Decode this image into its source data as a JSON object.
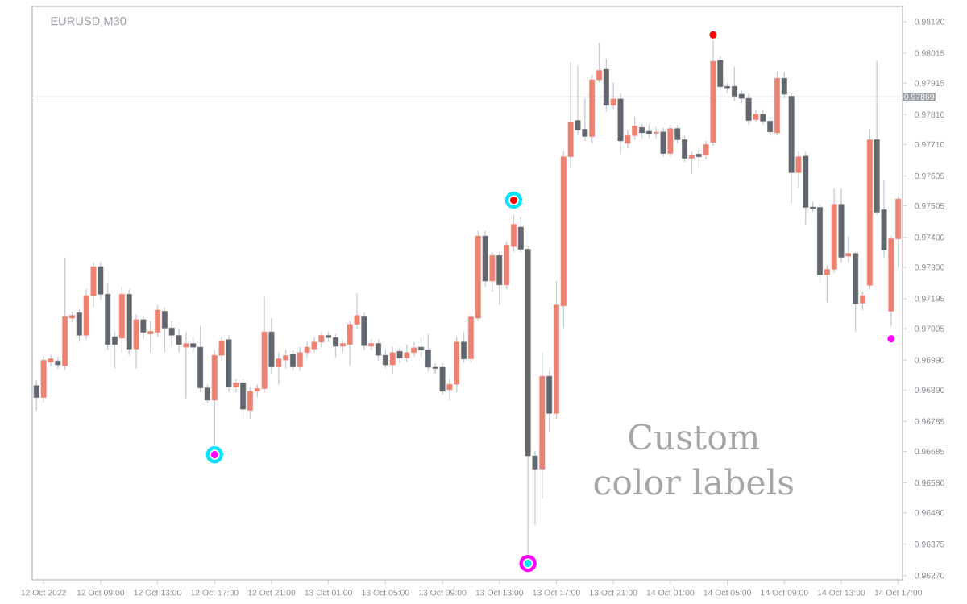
{
  "chart_data": {
    "type": "candlestick",
    "title": "EURUSD,M30",
    "annotations": [
      "Custom color labels"
    ],
    "x": [
      "2022-10-12T04:30",
      "2022-10-12T05:00",
      "2022-10-12T05:30",
      "2022-10-12T06:00",
      "2022-10-12T06:30",
      "2022-10-12T07:00",
      "2022-10-12T07:30",
      "2022-10-12T08:00",
      "2022-10-12T08:30",
      "2022-10-12T09:00",
      "2022-10-12T09:30",
      "2022-10-12T10:00",
      "2022-10-12T10:30",
      "2022-10-12T11:00",
      "2022-10-12T11:30",
      "2022-10-12T12:00",
      "2022-10-12T12:30",
      "2022-10-12T13:00",
      "2022-10-12T13:30",
      "2022-10-12T14:00",
      "2022-10-12T14:30",
      "2022-10-12T15:00",
      "2022-10-12T15:30",
      "2022-10-12T16:00",
      "2022-10-12T16:30",
      "2022-10-12T17:00",
      "2022-10-12T17:30",
      "2022-10-12T18:00",
      "2022-10-12T18:30",
      "2022-10-12T19:00",
      "2022-10-12T19:30",
      "2022-10-12T20:00",
      "2022-10-12T20:30",
      "2022-10-12T21:00",
      "2022-10-12T21:30",
      "2022-10-12T22:00",
      "2022-10-12T22:30",
      "2022-10-12T23:00",
      "2022-10-12T23:30",
      "2022-10-13T00:00",
      "2022-10-13T00:30",
      "2022-10-13T01:00",
      "2022-10-13T01:30",
      "2022-10-13T02:00",
      "2022-10-13T02:30",
      "2022-10-13T03:00",
      "2022-10-13T03:30",
      "2022-10-13T04:00",
      "2022-10-13T04:30",
      "2022-10-13T05:00",
      "2022-10-13T05:30",
      "2022-10-13T06:00",
      "2022-10-13T06:30",
      "2022-10-13T07:00",
      "2022-10-13T07:30",
      "2022-10-13T08:00",
      "2022-10-13T08:30",
      "2022-10-13T09:00",
      "2022-10-13T09:30",
      "2022-10-13T10:00",
      "2022-10-13T10:30",
      "2022-10-13T11:00",
      "2022-10-13T11:30",
      "2022-10-13T12:00",
      "2022-10-13T12:30",
      "2022-10-13T13:00",
      "2022-10-13T13:30",
      "2022-10-13T14:00",
      "2022-10-13T14:30",
      "2022-10-13T15:00",
      "2022-10-13T15:30",
      "2022-10-13T16:00",
      "2022-10-13T16:30",
      "2022-10-13T17:00",
      "2022-10-13T17:30",
      "2022-10-13T18:00",
      "2022-10-13T18:30",
      "2022-10-13T19:00",
      "2022-10-13T19:30",
      "2022-10-13T20:00",
      "2022-10-13T20:30",
      "2022-10-13T21:00",
      "2022-10-13T21:30",
      "2022-10-13T22:00",
      "2022-10-13T22:30",
      "2022-10-13T23:00",
      "2022-10-13T23:30",
      "2022-10-14T00:00",
      "2022-10-14T00:30",
      "2022-10-14T01:00",
      "2022-10-14T01:30",
      "2022-10-14T02:00",
      "2022-10-14T02:30",
      "2022-10-14T03:00",
      "2022-10-14T03:30",
      "2022-10-14T04:00",
      "2022-10-14T04:30",
      "2022-10-14T05:00",
      "2022-10-14T05:30",
      "2022-10-14T06:00",
      "2022-10-14T06:30",
      "2022-10-14T07:00",
      "2022-10-14T07:30",
      "2022-10-14T08:00",
      "2022-10-14T08:30",
      "2022-10-14T09:00",
      "2022-10-14T09:30",
      "2022-10-14T10:00",
      "2022-10-14T10:30",
      "2022-10-14T11:00",
      "2022-10-14T11:30",
      "2022-10-14T12:00",
      "2022-10-14T12:30",
      "2022-10-14T13:00",
      "2022-10-14T13:30",
      "2022-10-14T14:00",
      "2022-10-14T14:30",
      "2022-10-14T15:00",
      "2022-10-14T15:30",
      "2022-10-14T16:00",
      "2022-10-14T16:30",
      "2022-10-14T17:00"
    ],
    "ohlc": [
      [
        0.96905,
        0.96923,
        0.96821,
        0.96865
      ],
      [
        0.96865,
        0.97003,
        0.96847,
        0.96989
      ],
      [
        0.96983,
        0.97008,
        0.96969,
        0.96994
      ],
      [
        0.96987,
        0.97001,
        0.9696,
        0.96974
      ],
      [
        0.96971,
        0.97333,
        0.96957,
        0.97135
      ],
      [
        0.9713,
        0.97153,
        0.97116,
        0.97139
      ],
      [
        0.97148,
        0.97162,
        0.9705,
        0.97073
      ],
      [
        0.97073,
        0.97227,
        0.97059,
        0.97205
      ],
      [
        0.97205,
        0.97316,
        0.97166,
        0.97302
      ],
      [
        0.97302,
        0.97319,
        0.97192,
        0.9721
      ],
      [
        0.9721,
        0.97245,
        0.97024,
        0.97042
      ],
      [
        0.97068,
        0.97086,
        0.96962,
        0.97042
      ],
      [
        0.97063,
        0.97236,
        0.97015,
        0.9721
      ],
      [
        0.9721,
        0.97227,
        0.97006,
        0.97027
      ],
      [
        0.97027,
        0.97142,
        0.96962,
        0.97125
      ],
      [
        0.97125,
        0.97139,
        0.97059,
        0.97083
      ],
      [
        0.97077,
        0.97121,
        0.97015,
        0.97086
      ],
      [
        0.97083,
        0.97174,
        0.97068,
        0.97157
      ],
      [
        0.97153,
        0.97166,
        0.97015,
        0.97097
      ],
      [
        0.97097,
        0.97121,
        0.97033,
        0.97073
      ],
      [
        0.97072,
        0.97095,
        0.97015,
        0.97042
      ],
      [
        0.97033,
        0.97086,
        0.9686,
        0.97045
      ],
      [
        0.97045,
        0.97068,
        0.97015,
        0.97033
      ],
      [
        0.97033,
        0.97104,
        0.96883,
        0.96897
      ],
      [
        0.96897,
        0.96909,
        0.96847,
        0.96856
      ],
      [
        0.96856,
        0.97024,
        0.96706,
        0.97006
      ],
      [
        0.97006,
        0.97068,
        0.96989,
        0.97054
      ],
      [
        0.97058,
        0.97072,
        0.96883,
        0.969
      ],
      [
        0.969,
        0.96927,
        0.96883,
        0.96914
      ],
      [
        0.96914,
        0.96927,
        0.96794,
        0.96826
      ],
      [
        0.96822,
        0.969,
        0.96794,
        0.96886
      ],
      [
        0.96886,
        0.96909,
        0.96865,
        0.96895
      ],
      [
        0.96895,
        0.97201,
        0.96883,
        0.97084
      ],
      [
        0.97084,
        0.9713,
        0.96944,
        0.96967
      ],
      [
        0.96967,
        0.97015,
        0.96909,
        0.96994
      ],
      [
        0.9699,
        0.97024,
        0.96962,
        0.97005
      ],
      [
        0.9701,
        0.97024,
        0.96953,
        0.96967
      ],
      [
        0.96967,
        0.97033,
        0.96953,
        0.97015
      ],
      [
        0.97015,
        0.9705,
        0.96997,
        0.97033
      ],
      [
        0.97027,
        0.97068,
        0.97015,
        0.9705
      ],
      [
        0.9705,
        0.97086,
        0.97033,
        0.97072
      ],
      [
        0.97072,
        0.97086,
        0.9705,
        0.97065
      ],
      [
        0.97065,
        0.97077,
        0.96997,
        0.97036
      ],
      [
        0.97036,
        0.97059,
        0.97015,
        0.97045
      ],
      [
        0.97042,
        0.97121,
        0.96971,
        0.97109
      ],
      [
        0.97109,
        0.97213,
        0.97095,
        0.97139
      ],
      [
        0.97135,
        0.97148,
        0.97024,
        0.97038
      ],
      [
        0.97036,
        0.97059,
        0.97024,
        0.97045
      ],
      [
        0.97045,
        0.97059,
        0.96989,
        0.97006
      ],
      [
        0.97006,
        0.97024,
        0.96962,
        0.96974
      ],
      [
        0.96974,
        0.97033,
        0.96944,
        0.97015
      ],
      [
        0.97019,
        0.97033,
        0.9698,
        0.96997
      ],
      [
        0.96997,
        0.97042,
        0.96983,
        0.97015
      ],
      [
        0.97015,
        0.9705,
        0.97001,
        0.97031
      ],
      [
        0.97033,
        0.97065,
        0.96997,
        0.97024
      ],
      [
        0.97024,
        0.97077,
        0.96953,
        0.96966
      ],
      [
        0.96966,
        0.9698,
        0.96944,
        0.96962
      ],
      [
        0.96966,
        0.9698,
        0.96874,
        0.96886
      ],
      [
        0.96891,
        0.96927,
        0.96856,
        0.96909
      ],
      [
        0.96909,
        0.97068,
        0.96883,
        0.9705
      ],
      [
        0.9705,
        0.97086,
        0.9698,
        0.96994
      ],
      [
        0.96994,
        0.97148,
        0.9698,
        0.97134
      ],
      [
        0.9713,
        0.97422,
        0.97121,
        0.97404
      ],
      [
        0.97404,
        0.97422,
        0.97236,
        0.97254
      ],
      [
        0.97254,
        0.97351,
        0.97218,
        0.97339
      ],
      [
        0.97339,
        0.97351,
        0.97174,
        0.97241
      ],
      [
        0.97241,
        0.97386,
        0.97227,
        0.97374
      ],
      [
        0.97369,
        0.97475,
        0.97351,
        0.97443
      ],
      [
        0.97434,
        0.97466,
        0.97351,
        0.9736
      ],
      [
        0.9736,
        0.97369,
        0.96343,
        0.9667
      ],
      [
        0.9667,
        0.96688,
        0.9644,
        0.96626
      ],
      [
        0.96626,
        0.97015,
        0.96529,
        0.96936
      ],
      [
        0.96936,
        0.96953,
        0.9675,
        0.96812
      ],
      [
        0.96812,
        0.97254,
        0.96794,
        0.97174
      ],
      [
        0.97171,
        0.97687,
        0.971,
        0.97669
      ],
      [
        0.97669,
        0.97984,
        0.97634,
        0.97784
      ],
      [
        0.9779,
        0.97973,
        0.9774,
        0.97758
      ],
      [
        0.97761,
        0.97864,
        0.97722,
        0.97737
      ],
      [
        0.97737,
        0.97943,
        0.97714,
        0.97926
      ],
      [
        0.97926,
        0.98049,
        0.97917,
        0.97957
      ],
      [
        0.97961,
        0.97996,
        0.9782,
        0.97841
      ],
      [
        0.97841,
        0.97917,
        0.97828,
        0.97862
      ],
      [
        0.97862,
        0.97881,
        0.97678,
        0.97722
      ],
      [
        0.97714,
        0.97758,
        0.97696,
        0.9774
      ],
      [
        0.9774,
        0.97802,
        0.97726,
        0.97772
      ],
      [
        0.97767,
        0.97779,
        0.97731,
        0.97749
      ],
      [
        0.97754,
        0.97775,
        0.97731,
        0.97745
      ],
      [
        0.97747,
        0.97767,
        0.97731,
        0.97751
      ],
      [
        0.97752,
        0.97767,
        0.97669,
        0.9768
      ],
      [
        0.9768,
        0.97775,
        0.97669,
        0.97763
      ],
      [
        0.97763,
        0.97775,
        0.97714,
        0.97726
      ],
      [
        0.97726,
        0.9774,
        0.97652,
        0.97664
      ],
      [
        0.97664,
        0.97687,
        0.97613,
        0.97675
      ],
      [
        0.97678,
        0.97696,
        0.97634,
        0.97669
      ],
      [
        0.97675,
        0.97722,
        0.9766,
        0.9771
      ],
      [
        0.97717,
        0.98058,
        0.97705,
        0.97988
      ],
      [
        0.97991,
        0.98005,
        0.9789,
        0.97903
      ],
      [
        0.97904,
        0.97917,
        0.97881,
        0.97899
      ],
      [
        0.97904,
        0.9797,
        0.97855,
        0.97871
      ],
      [
        0.97878,
        0.9789,
        0.97846,
        0.97864
      ],
      [
        0.97864,
        0.97881,
        0.97775,
        0.9779
      ],
      [
        0.97793,
        0.97828,
        0.97784,
        0.97811
      ],
      [
        0.97811,
        0.97828,
        0.97775,
        0.97788
      ],
      [
        0.97788,
        0.97802,
        0.9774,
        0.97752
      ],
      [
        0.97749,
        0.97952,
        0.9774,
        0.97931
      ],
      [
        0.97931,
        0.97952,
        0.97864,
        0.97878
      ],
      [
        0.97871,
        0.97881,
        0.97514,
        0.97616
      ],
      [
        0.97616,
        0.97687,
        0.97563,
        0.97669
      ],
      [
        0.97671,
        0.97687,
        0.9744,
        0.975
      ],
      [
        0.97501,
        0.97519,
        0.97484,
        0.97496
      ],
      [
        0.975,
        0.9751,
        0.97245,
        0.97275
      ],
      [
        0.97275,
        0.97307,
        0.97183,
        0.97293
      ],
      [
        0.97293,
        0.97563,
        0.9728,
        0.9751
      ],
      [
        0.9751,
        0.97563,
        0.97316,
        0.97333
      ],
      [
        0.97337,
        0.97404,
        0.97316,
        0.97346
      ],
      [
        0.97346,
        0.97351,
        0.97083,
        0.97178
      ],
      [
        0.9718,
        0.97218,
        0.97157,
        0.97205
      ],
      [
        0.9724,
        0.97761,
        0.97227,
        0.97726
      ],
      [
        0.97726,
        0.97991,
        0.97475,
        0.97484
      ],
      [
        0.97492,
        0.9759,
        0.97333,
        0.97358
      ],
      [
        0.97153,
        0.97404,
        0.97104,
        0.97395
      ],
      [
        0.97395,
        0.97537,
        0.97298,
        0.97528
      ]
    ],
    "colors": [
      "#62676d",
      "#ee8272",
      "#ee8272",
      "#62676d",
      "#ee8272",
      "#ee8272",
      "#62676d",
      "#ee8272",
      "#ee8272",
      "#62676d",
      "#62676d",
      "#62676d",
      "#ee8272",
      "#62676d",
      "#ee8272",
      "#62676d",
      "#ee8272",
      "#ee8272",
      "#62676d",
      "#62676d",
      "#62676d",
      "#ee8272",
      "#62676d",
      "#62676d",
      "#62676d",
      "#ee8272",
      "#ee8272",
      "#62676d",
      "#ee8272",
      "#62676d",
      "#ee8272",
      "#ee8272",
      "#ee8272",
      "#62676d",
      "#ee8272",
      "#ee8272",
      "#62676d",
      "#ee8272",
      "#ee8272",
      "#ee8272",
      "#ee8272",
      "#62676d",
      "#62676d",
      "#ee8272",
      "#ee8272",
      "#ee8272",
      "#62676d",
      "#ee8272",
      "#62676d",
      "#62676d",
      "#ee8272",
      "#62676d",
      "#ee8272",
      "#ee8272",
      "#62676d",
      "#62676d",
      "#62676d",
      "#62676d",
      "#ee8272",
      "#ee8272",
      "#62676d",
      "#ee8272",
      "#ee8272",
      "#62676d",
      "#ee8272",
      "#62676d",
      "#ee8272",
      "#ee8272",
      "#62676d",
      "#62676d",
      "#62676d",
      "#ee8272",
      "#62676d",
      "#ee8272",
      "#ee8272",
      "#ee8272",
      "#62676d",
      "#62676d",
      "#ee8272",
      "#ee8272",
      "#62676d",
      "#ee8272",
      "#62676d",
      "#ee8272",
      "#ee8272",
      "#62676d",
      "#62676d",
      "#ee8272",
      "#62676d",
      "#ee8272",
      "#62676d",
      "#62676d",
      "#ee8272",
      "#62676d",
      "#ee8272",
      "#ee8272",
      "#62676d",
      "#62676d",
      "#62676d",
      "#62676d",
      "#62676d",
      "#ee8272",
      "#62676d",
      "#62676d",
      "#ee8272",
      "#62676d",
      "#62676d",
      "#ee8272",
      "#62676d",
      "#62676d",
      "#62676d",
      "#ee8272",
      "#ee8272",
      "#62676d",
      "#ee8272",
      "#62676d",
      "#ee8272",
      "#ee8272",
      "#62676d",
      "#62676d",
      "#ee8272",
      "#ee8272"
    ],
    "series": [
      {
        "type": "scatter",
        "x": [
          "2022-10-12T17:00",
          "2022-10-13T14:00",
          "2022-10-13T15:00"
        ],
        "values": [
          0.96674,
          0.97524,
          0.96311
        ],
        "colors": [
          "#00e5ff",
          "#00e5ff",
          "#ff00ff"
        ]
      },
      {
        "type": "scatter",
        "marker": "circle",
        "x": [
          "2022-10-12T17:00",
          "2022-10-13T14:00",
          "2022-10-13T15:00",
          "2022-10-14T04:00",
          "2022-10-14T16:30"
        ],
        "values": [
          0.96674,
          0.97524,
          0.96311,
          0.98076,
          0.97061
        ],
        "colors": [
          "#ff00ff",
          "#ff0000",
          "#00e5ff",
          "#ff0000",
          "#ff00ff"
        ]
      }
    ],
    "ref_lines": [
      {
        "axis": "y",
        "value": 0.97869,
        "label": "0.97869",
        "color": "#e4e6ea"
      }
    ],
    "xlim": [
      "2022-10-12T04:12",
      "2022-10-14T17:18"
    ],
    "ylim": [
      0.96256,
      0.98171
    ],
    "xticks": [
      {
        "value": "2022-10-12T05:00",
        "label": "12 Oct 2022"
      },
      {
        "value": "2022-10-12T09:00",
        "label": "12 Oct 09:00"
      },
      {
        "value": "2022-10-12T13:00",
        "label": "12 Oct 13:00"
      },
      {
        "value": "2022-10-12T17:00",
        "label": "12 Oct 17:00"
      },
      {
        "value": "2022-10-12T21:00",
        "label": "12 Oct 21:00"
      },
      {
        "value": "2022-10-13T01:00",
        "label": "13 Oct 01:00"
      },
      {
        "value": "2022-10-13T05:00",
        "label": "13 Oct 05:00"
      },
      {
        "value": "2022-10-13T09:00",
        "label": "13 Oct 09:00"
      },
      {
        "value": "2022-10-13T13:00",
        "label": "13 Oct 13:00"
      },
      {
        "value": "2022-10-13T17:00",
        "label": "13 Oct 17:00"
      },
      {
        "value": "2022-10-13T21:00",
        "label": "13 Oct 21:00"
      },
      {
        "value": "2022-10-14T01:00",
        "label": "14 Oct 01:00"
      },
      {
        "value": "2022-10-14T05:00",
        "label": "14 Oct 05:00"
      },
      {
        "value": "2022-10-14T09:00",
        "label": "14 Oct 09:00"
      },
      {
        "value": "2022-10-14T13:00",
        "label": "14 Oct 13:00"
      },
      {
        "value": "2022-10-14T17:00",
        "label": "14 Oct 17:00"
      }
    ],
    "yticks": [
      {
        "value": 0.9627,
        "label": "0.96270"
      },
      {
        "value": 0.96375,
        "label": "0.96375"
      },
      {
        "value": 0.9648,
        "label": "0.96480"
      },
      {
        "value": 0.9658,
        "label": "0.96580"
      },
      {
        "value": 0.96685,
        "label": "0.96685"
      },
      {
        "value": 0.96785,
        "label": "0.96785"
      },
      {
        "value": 0.9689,
        "label": "0.96890"
      },
      {
        "value": 0.9699,
        "label": "0.96990"
      },
      {
        "value": 0.97095,
        "label": "0.97095"
      },
      {
        "value": 0.97195,
        "label": "0.97195"
      },
      {
        "value": 0.973,
        "label": "0.97300"
      },
      {
        "value": 0.974,
        "label": "0.97400"
      },
      {
        "value": 0.97505,
        "label": "0.97505"
      },
      {
        "value": 0.97605,
        "label": "0.97605"
      },
      {
        "value": 0.9771,
        "label": "0.97710"
      },
      {
        "value": 0.9781,
        "label": "0.97810"
      },
      {
        "value": 0.97915,
        "label": "0.97915"
      },
      {
        "value": 0.98015,
        "label": "0.98015"
      },
      {
        "value": 0.9812,
        "label": "0.98120"
      }
    ]
  }
}
